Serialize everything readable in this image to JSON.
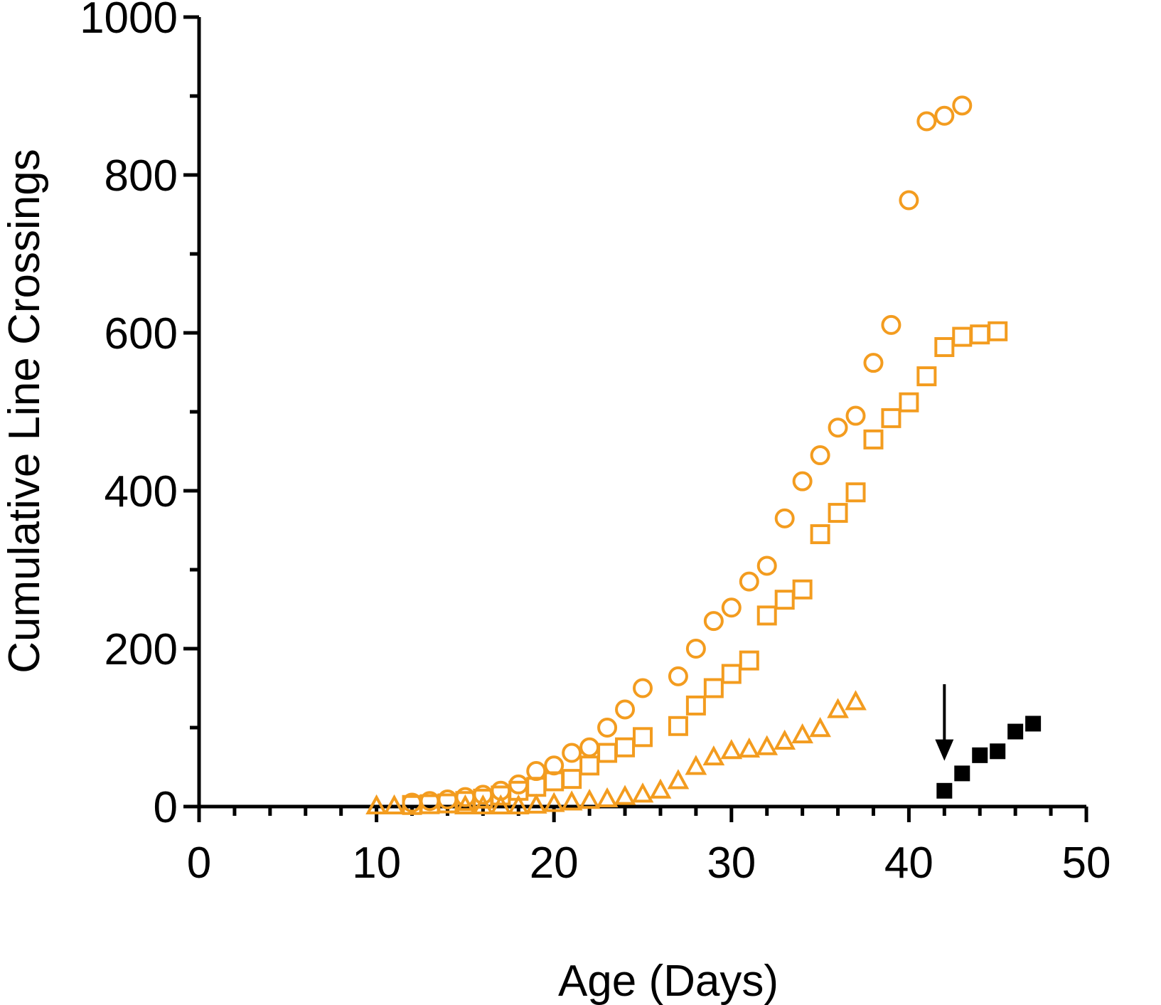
{
  "chart_data": {
    "type": "scatter",
    "title": "",
    "xlabel": "Age (Days)",
    "ylabel": "Cumulative Line Crossings",
    "xlim": [
      0,
      50
    ],
    "ylim": [
      0,
      1000
    ],
    "x_ticks": [
      0,
      10,
      20,
      30,
      40,
      50
    ],
    "y_ticks": [
      0,
      200,
      400,
      600,
      800,
      1000
    ],
    "x_minor_step": 2,
    "y_minor_step": 100,
    "grid": false,
    "legend": "none",
    "colors": {
      "orange": "#f39c1f",
      "black": "#000000"
    },
    "series": [
      {
        "name": "circles",
        "marker": "circle",
        "filled": false,
        "color": "#f39c1f",
        "x": [
          12,
          13,
          14,
          15,
          16,
          17,
          18,
          19,
          20,
          21,
          22,
          23,
          24,
          25,
          27,
          28,
          29,
          30,
          31,
          32,
          33,
          34,
          35,
          36,
          37,
          38,
          39,
          40,
          41,
          42,
          43
        ],
        "y": [
          5,
          7,
          9,
          12,
          15,
          20,
          28,
          45,
          52,
          68,
          75,
          100,
          123,
          150,
          165,
          200,
          235,
          252,
          285,
          305,
          365,
          412,
          445,
          480,
          495,
          562,
          610,
          768,
          868,
          875,
          888
        ]
      },
      {
        "name": "open squares",
        "marker": "square",
        "filled": false,
        "color": "#f39c1f",
        "x": [
          12,
          13,
          14,
          15,
          16,
          17,
          18,
          19,
          20,
          21,
          22,
          23,
          24,
          25,
          27,
          28,
          29,
          30,
          31,
          32,
          33,
          34,
          35,
          36,
          37,
          38,
          39,
          40,
          41,
          42,
          43,
          44,
          45
        ],
        "y": [
          2,
          3,
          4,
          7,
          10,
          14,
          20,
          25,
          32,
          35,
          52,
          68,
          75,
          88,
          102,
          128,
          150,
          168,
          185,
          242,
          262,
          275,
          345,
          372,
          398,
          465,
          492,
          512,
          545,
          582,
          595,
          598,
          602
        ]
      },
      {
        "name": "triangles",
        "marker": "triangle",
        "filled": false,
        "color": "#f39c1f",
        "x": [
          10,
          11,
          15,
          16,
          17,
          18,
          19,
          20,
          21,
          22,
          23,
          24,
          25,
          26,
          27,
          28,
          29,
          30,
          31,
          32,
          33,
          34,
          35,
          36,
          37
        ],
        "y": [
          0,
          0,
          0,
          0,
          0,
          0,
          1,
          3,
          5,
          7,
          9,
          12,
          15,
          20,
          32,
          50,
          62,
          70,
          72,
          75,
          82,
          90,
          98,
          122,
          132
        ]
      },
      {
        "name": "filled squares",
        "marker": "square",
        "filled": true,
        "color": "#000000",
        "x": [
          42,
          43,
          44,
          45,
          46,
          47
        ],
        "y": [
          20,
          42,
          65,
          70,
          95,
          105
        ]
      }
    ],
    "annotations": [
      {
        "type": "arrow",
        "x": 42,
        "y_from": 155,
        "y_to": 58,
        "color": "#000000"
      }
    ]
  }
}
